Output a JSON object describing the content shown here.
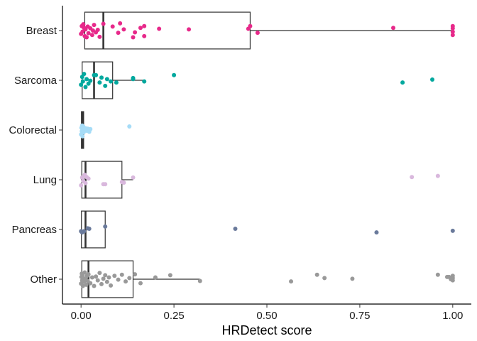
{
  "chart_data": {
    "type": "box",
    "title": "",
    "xlabel": "HRDetect score",
    "ylabel": "",
    "xlim": [
      -0.05,
      1.05
    ],
    "x_ticks": [
      {
        "value": 0,
        "label": "0.00"
      },
      {
        "value": 0.25,
        "label": "0.25"
      },
      {
        "value": 0.5,
        "label": "0.50"
      },
      {
        "value": 0.75,
        "label": "0.75"
      },
      {
        "value": 1,
        "label": "1.00"
      }
    ],
    "grid": false,
    "legend": "none",
    "categories": [
      "Breast",
      "Sarcoma",
      "Colorectal",
      "Lung",
      "Pancreas",
      "Other"
    ],
    "series": [
      {
        "category": "Breast",
        "color": "#e7298a",
        "box": {
          "q1": 0.01,
          "median": 0.06,
          "q3": 0.455,
          "whisker_low": 0.0,
          "whisker_high": 1.0
        },
        "points": [
          {
            "x": 0.0,
            "j": -0.15
          },
          {
            "x": 0.002,
            "j": 0.2
          },
          {
            "x": 0.004,
            "j": -0.05
          },
          {
            "x": 0.006,
            "j": 0.28
          },
          {
            "x": 0.008,
            "j": 0.12
          },
          {
            "x": 0.01,
            "j": -0.25
          },
          {
            "x": 0.012,
            "j": 0.05
          },
          {
            "x": 0.015,
            "j": -0.3
          },
          {
            "x": 0.018,
            "j": 0.18
          },
          {
            "x": 0.02,
            "j": -0.12
          },
          {
            "x": 0.025,
            "j": 0.1
          },
          {
            "x": 0.03,
            "j": -0.2
          },
          {
            "x": 0.032,
            "j": 0.0
          },
          {
            "x": 0.035,
            "j": 0.25
          },
          {
            "x": 0.04,
            "j": -0.08
          },
          {
            "x": 0.045,
            "j": 0.03
          },
          {
            "x": 0.05,
            "j": -0.28
          },
          {
            "x": 0.06,
            "j": 0.3
          },
          {
            "x": 0.085,
            "j": 0.18
          },
          {
            "x": 0.1,
            "j": -0.1
          },
          {
            "x": 0.105,
            "j": 0.32
          },
          {
            "x": 0.115,
            "j": 0.05
          },
          {
            "x": 0.14,
            "j": -0.3
          },
          {
            "x": 0.145,
            "j": -0.08
          },
          {
            "x": 0.16,
            "j": 0.12
          },
          {
            "x": 0.17,
            "j": -0.25
          },
          {
            "x": 0.21,
            "j": 0.08
          },
          {
            "x": 0.17,
            "j": 0.2
          },
          {
            "x": 0.29,
            "j": 0.05
          },
          {
            "x": 0.45,
            "j": 0.08
          },
          {
            "x": 0.455,
            "j": 0.2
          },
          {
            "x": 0.475,
            "j": -0.1
          },
          {
            "x": 0.84,
            "j": 0.12
          },
          {
            "x": 1.0,
            "j": 0.2
          },
          {
            "x": 1.0,
            "j": 0.1
          },
          {
            "x": 1.0,
            "j": -0.05
          },
          {
            "x": 1.0,
            "j": -0.2
          }
        ]
      },
      {
        "category": "Sarcoma",
        "color": "#02a89e",
        "box": {
          "q1": 0.003,
          "median": 0.035,
          "q3": 0.085,
          "whisker_low": 0.0,
          "whisker_high": 0.17
        },
        "points": [
          {
            "x": 0.0,
            "j": -0.2
          },
          {
            "x": 0.003,
            "j": 0.15
          },
          {
            "x": 0.005,
            "j": -0.05
          },
          {
            "x": 0.008,
            "j": 0.28
          },
          {
            "x": 0.012,
            "j": -0.3
          },
          {
            "x": 0.015,
            "j": 0.05
          },
          {
            "x": 0.02,
            "j": -0.15
          },
          {
            "x": 0.025,
            "j": -0.02
          },
          {
            "x": 0.035,
            "j": 0.23
          },
          {
            "x": 0.04,
            "j": 0.23
          },
          {
            "x": 0.05,
            "j": -0.1
          },
          {
            "x": 0.055,
            "j": 0.12
          },
          {
            "x": 0.065,
            "j": -0.25
          },
          {
            "x": 0.07,
            "j": 0.05
          },
          {
            "x": 0.08,
            "j": -0.05
          },
          {
            "x": 0.095,
            "j": -0.1
          },
          {
            "x": 0.14,
            "j": 0.1
          },
          {
            "x": 0.14,
            "j": 0.05
          },
          {
            "x": 0.17,
            "j": -0.05
          },
          {
            "x": 0.25,
            "j": 0.23
          },
          {
            "x": 0.865,
            "j": -0.1
          },
          {
            "x": 0.945,
            "j": 0.03
          }
        ]
      },
      {
        "category": "Colorectal",
        "color": "#a6dcf7",
        "box": {
          "q1": 0.001,
          "median": 0.004,
          "q3": 0.007,
          "whisker_low": 0.0,
          "whisker_high": 0.012
        },
        "points": [
          {
            "x": 0.0,
            "j": -0.2
          },
          {
            "x": 0.001,
            "j": 0.1
          },
          {
            "x": 0.002,
            "j": -0.05
          },
          {
            "x": 0.003,
            "j": 0.2
          },
          {
            "x": 0.004,
            "j": -0.28
          },
          {
            "x": 0.005,
            "j": 0.0
          },
          {
            "x": 0.006,
            "j": 0.15
          },
          {
            "x": 0.007,
            "j": -0.1
          },
          {
            "x": 0.008,
            "j": 0.05
          },
          {
            "x": 0.01,
            "j": -0.02
          },
          {
            "x": 0.012,
            "j": 0.08
          },
          {
            "x": 0.015,
            "j": -0.03
          },
          {
            "x": 0.018,
            "j": 0.06
          },
          {
            "x": 0.02,
            "j": 0.02
          },
          {
            "x": 0.022,
            "j": -0.08
          },
          {
            "x": 0.025,
            "j": 0.04
          },
          {
            "x": 0.13,
            "j": 0.16
          }
        ]
      },
      {
        "category": "Lung",
        "color": "#d9b8dd",
        "box": {
          "q1": 0.002,
          "median": 0.012,
          "q3": 0.11,
          "whisker_low": 0.0,
          "whisker_high": 0.14
        },
        "points": [
          {
            "x": 0.0,
            "j": -0.25
          },
          {
            "x": 0.003,
            "j": 0.1
          },
          {
            "x": 0.006,
            "j": -0.05
          },
          {
            "x": 0.01,
            "j": 0.22
          },
          {
            "x": 0.012,
            "j": -0.15
          },
          {
            "x": 0.015,
            "j": 0.12
          },
          {
            "x": 0.02,
            "j": 0.05
          },
          {
            "x": 0.06,
            "j": -0.2
          },
          {
            "x": 0.065,
            "j": -0.2
          },
          {
            "x": 0.11,
            "j": -0.1
          },
          {
            "x": 0.115,
            "j": -0.13
          },
          {
            "x": 0.14,
            "j": 0.1
          },
          {
            "x": 0.89,
            "j": 0.12
          },
          {
            "x": 0.96,
            "j": 0.17
          }
        ]
      },
      {
        "category": "Pancreas",
        "color": "#6a7a9b",
        "box": {
          "q1": 0.001,
          "median": 0.012,
          "q3": 0.065,
          "whisker_low": 0.0,
          "whisker_high": 0.065
        },
        "points": [
          {
            "x": 0.0,
            "j": -0.08
          },
          {
            "x": 0.003,
            "j": -0.13
          },
          {
            "x": 0.008,
            "j": -0.08
          },
          {
            "x": 0.018,
            "j": 0.05
          },
          {
            "x": 0.022,
            "j": 0.03
          },
          {
            "x": 0.065,
            "j": 0.13
          },
          {
            "x": 0.415,
            "j": 0.03
          },
          {
            "x": 0.795,
            "j": -0.13
          },
          {
            "x": 1.0,
            "j": -0.06
          }
        ]
      },
      {
        "category": "Other",
        "color": "#999999",
        "box": {
          "q1": 0.002,
          "median": 0.02,
          "q3": 0.14,
          "whisker_low": 0.0,
          "whisker_high": 0.32
        },
        "points": [
          {
            "x": 0.0,
            "j": -0.2
          },
          {
            "x": 0.001,
            "j": 0.1
          },
          {
            "x": 0.002,
            "j": 0.25
          },
          {
            "x": 0.003,
            "j": -0.05
          },
          {
            "x": 0.004,
            "j": 0.18
          },
          {
            "x": 0.005,
            "j": -0.3
          },
          {
            "x": 0.006,
            "j": 0.05
          },
          {
            "x": 0.008,
            "j": -0.12
          },
          {
            "x": 0.01,
            "j": 0.3
          },
          {
            "x": 0.012,
            "j": 0.0
          },
          {
            "x": 0.014,
            "j": -0.25
          },
          {
            "x": 0.016,
            "j": 0.15
          },
          {
            "x": 0.018,
            "j": -0.08
          },
          {
            "x": 0.02,
            "j": 0.22
          },
          {
            "x": 0.025,
            "j": -0.18
          },
          {
            "x": 0.03,
            "j": 0.08
          },
          {
            "x": 0.035,
            "j": -0.3
          },
          {
            "x": 0.04,
            "j": 0.12
          },
          {
            "x": 0.045,
            "j": -0.05
          },
          {
            "x": 0.05,
            "j": 0.28
          },
          {
            "x": 0.055,
            "j": -0.22
          },
          {
            "x": 0.06,
            "j": 0.02
          },
          {
            "x": 0.065,
            "j": 0.18
          },
          {
            "x": 0.07,
            "j": -0.12
          },
          {
            "x": 0.075,
            "j": 0.08
          },
          {
            "x": 0.08,
            "j": -0.28
          },
          {
            "x": 0.09,
            "j": 0.15
          },
          {
            "x": 0.1,
            "j": -0.02
          },
          {
            "x": 0.11,
            "j": 0.2
          },
          {
            "x": 0.12,
            "j": -0.1
          },
          {
            "x": 0.13,
            "j": 0.05
          },
          {
            "x": 0.145,
            "j": 0.22
          },
          {
            "x": 0.16,
            "j": -0.18
          },
          {
            "x": 0.2,
            "j": 0.08
          },
          {
            "x": 0.24,
            "j": 0.18
          },
          {
            "x": 0.32,
            "j": -0.08
          },
          {
            "x": 0.565,
            "j": -0.1
          },
          {
            "x": 0.635,
            "j": 0.2
          },
          {
            "x": 0.655,
            "j": 0.05
          },
          {
            "x": 0.73,
            "j": 0.02
          },
          {
            "x": 0.96,
            "j": 0.2
          },
          {
            "x": 0.99,
            "j": 0.1
          },
          {
            "x": 0.995,
            "j": 0.0
          },
          {
            "x": 1.0,
            "j": 0.15
          },
          {
            "x": 1.0,
            "j": -0.05
          },
          {
            "x": 1.0,
            "j": 0.05
          },
          {
            "x": 0.985,
            "j": 0.1
          }
        ]
      }
    ]
  }
}
